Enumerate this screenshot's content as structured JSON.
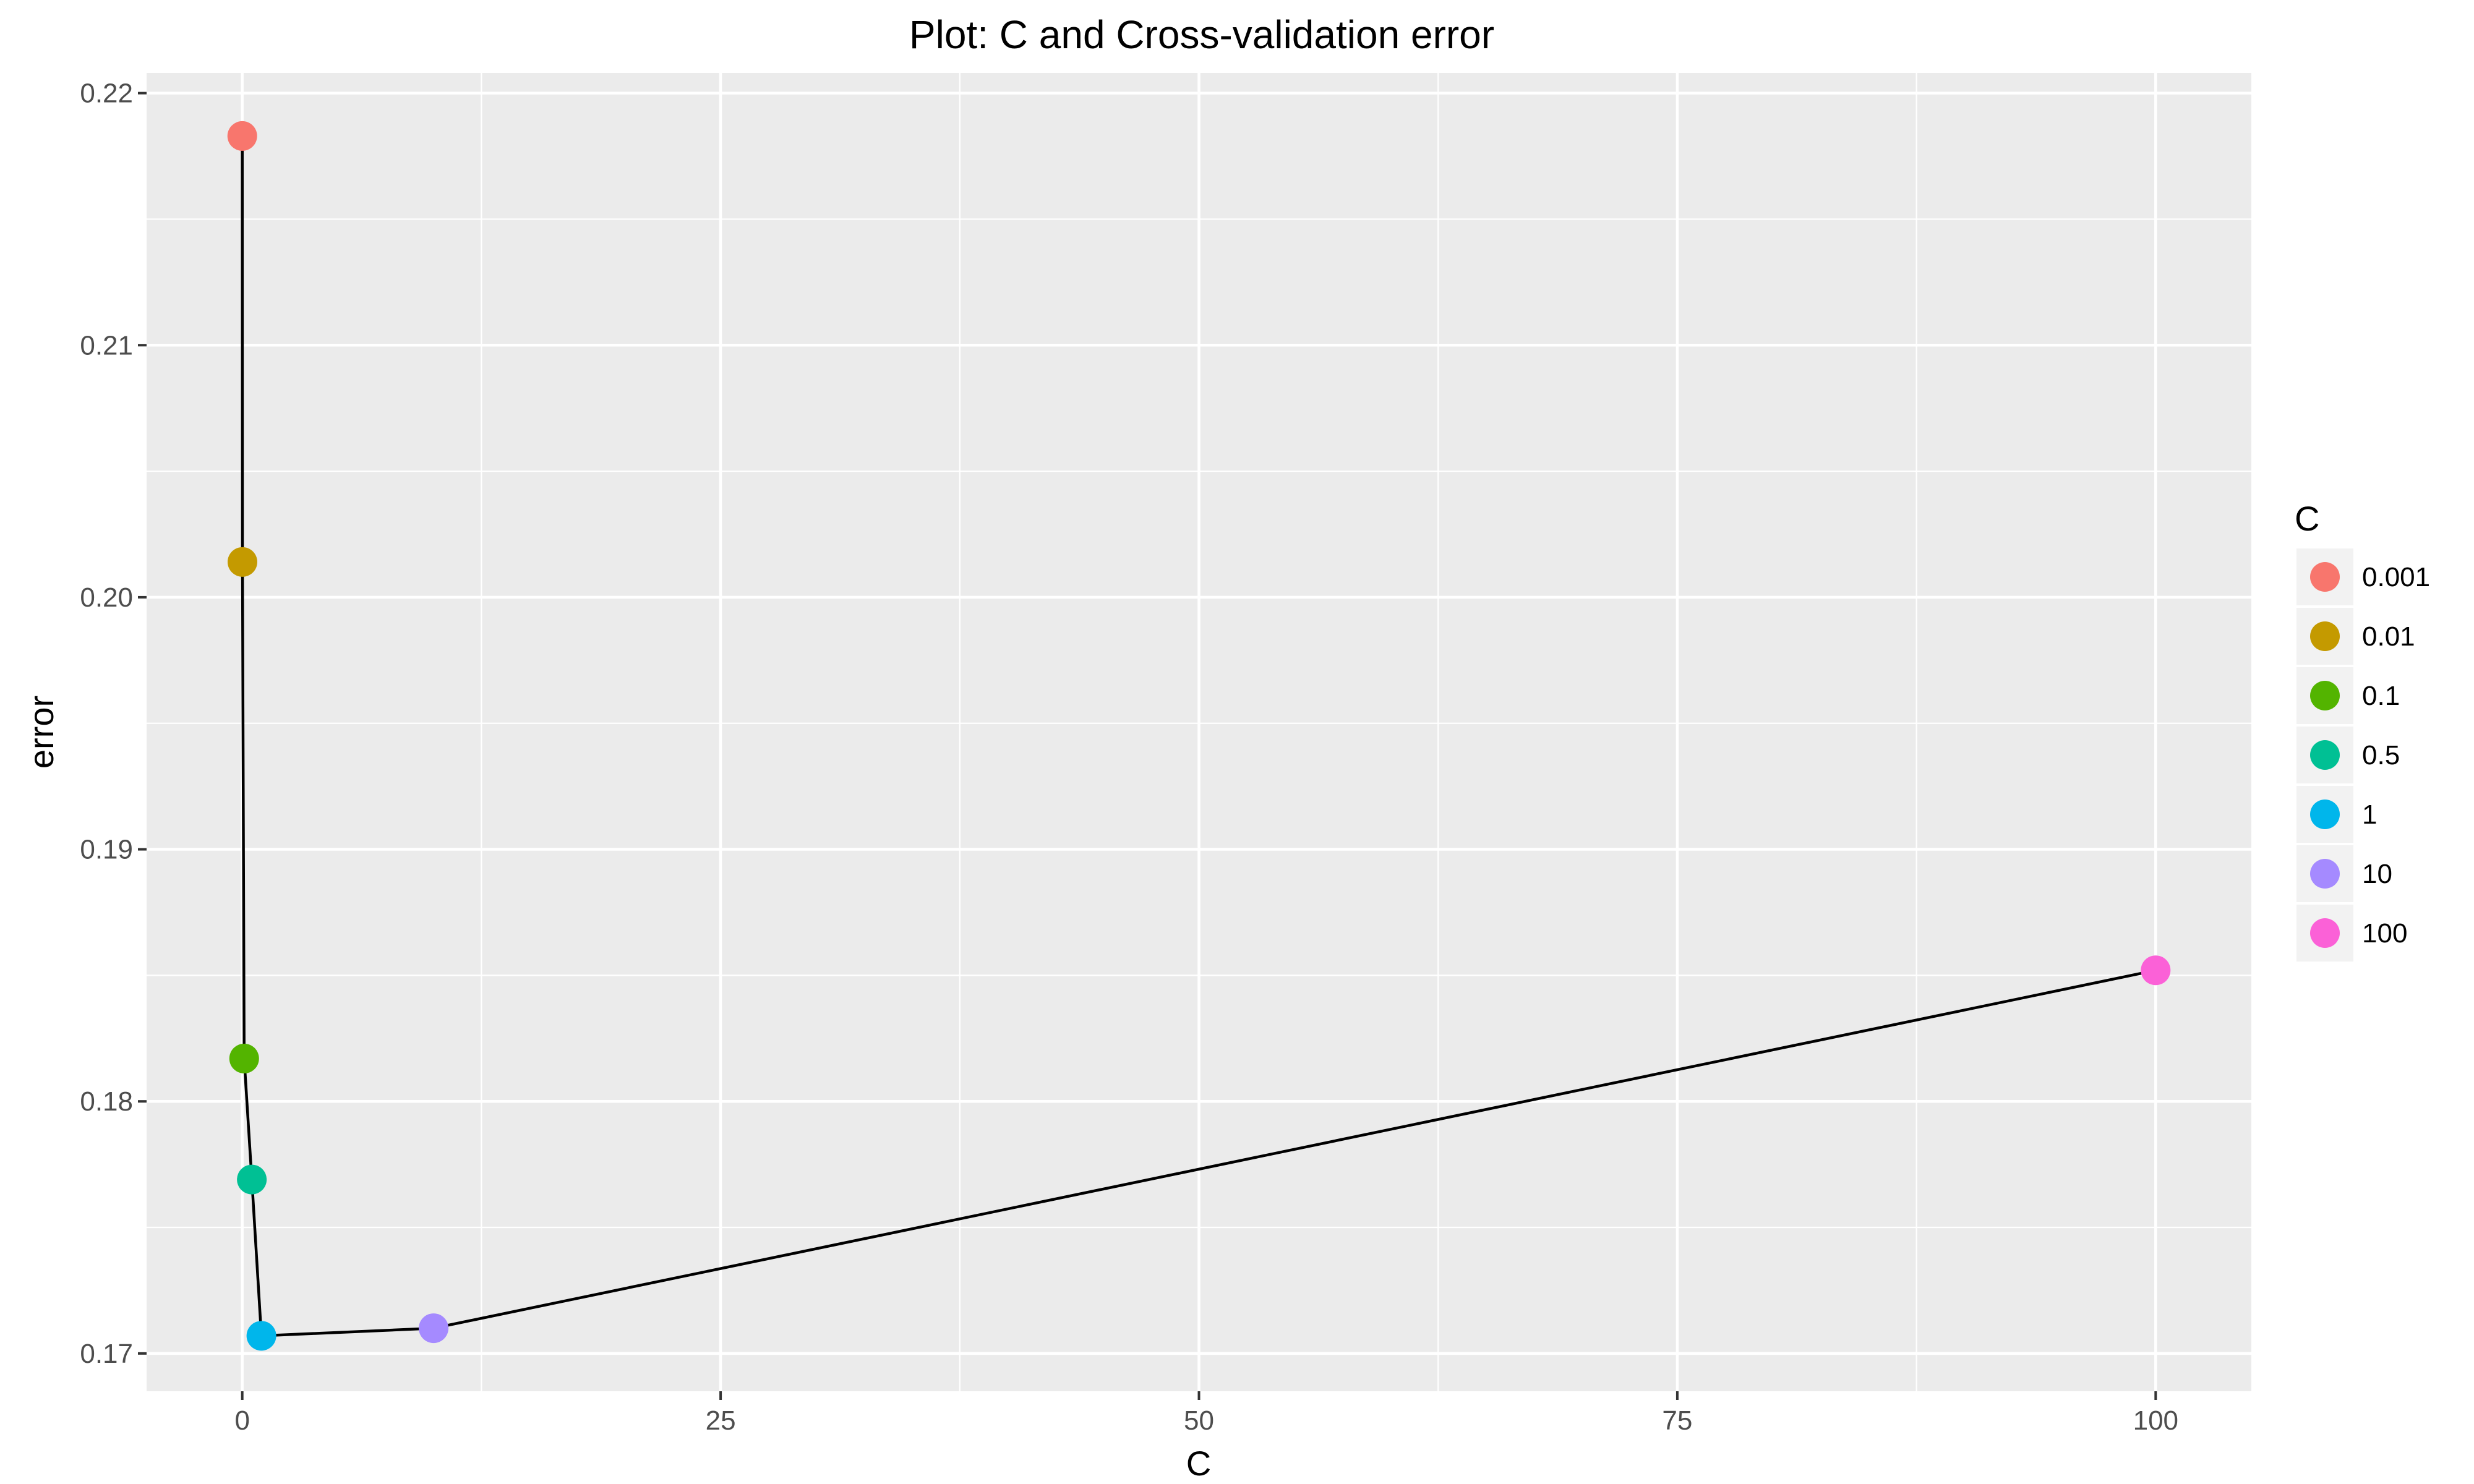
{
  "chart_data": {
    "type": "scatter",
    "title": "Plot: C and Cross-validation error",
    "xlabel": "C",
    "ylabel": "error",
    "xlim": [
      -5,
      105
    ],
    "ylim": [
      0.1685,
      0.2208
    ],
    "x_ticks": [
      0,
      25,
      50,
      75,
      100
    ],
    "y_ticks": [
      0.17,
      0.18,
      0.19,
      0.2,
      0.21,
      0.22
    ],
    "x_tick_labels": [
      "0",
      "25",
      "50",
      "75",
      "100"
    ],
    "y_tick_labels": [
      "0.17",
      "0.18",
      "0.19",
      "0.20",
      "0.21",
      "0.22"
    ],
    "grid": true,
    "connecting_line": true,
    "line_color": "#000000",
    "panel_background": "#EBEBEB",
    "grid_color": "#FFFFFF",
    "legend": {
      "title": "C",
      "position": "right",
      "entries": [
        "0.001",
        "0.01",
        "0.1",
        "0.5",
        "1",
        "10",
        "100"
      ]
    },
    "points": [
      {
        "label": "0.001",
        "x": 0.001,
        "y": 0.2183,
        "color": "#F8766D"
      },
      {
        "label": "0.01",
        "x": 0.01,
        "y": 0.2014,
        "color": "#C49A00"
      },
      {
        "label": "0.1",
        "x": 0.1,
        "y": 0.1817,
        "color": "#53B400"
      },
      {
        "label": "0.5",
        "x": 0.5,
        "y": 0.1769,
        "color": "#00C094"
      },
      {
        "label": "1",
        "x": 1,
        "y": 0.1707,
        "color": "#00B6EB"
      },
      {
        "label": "10",
        "x": 10,
        "y": 0.171,
        "color": "#A58AFF"
      },
      {
        "label": "100",
        "x": 100,
        "y": 0.1852,
        "color": "#FB61D7"
      }
    ]
  }
}
